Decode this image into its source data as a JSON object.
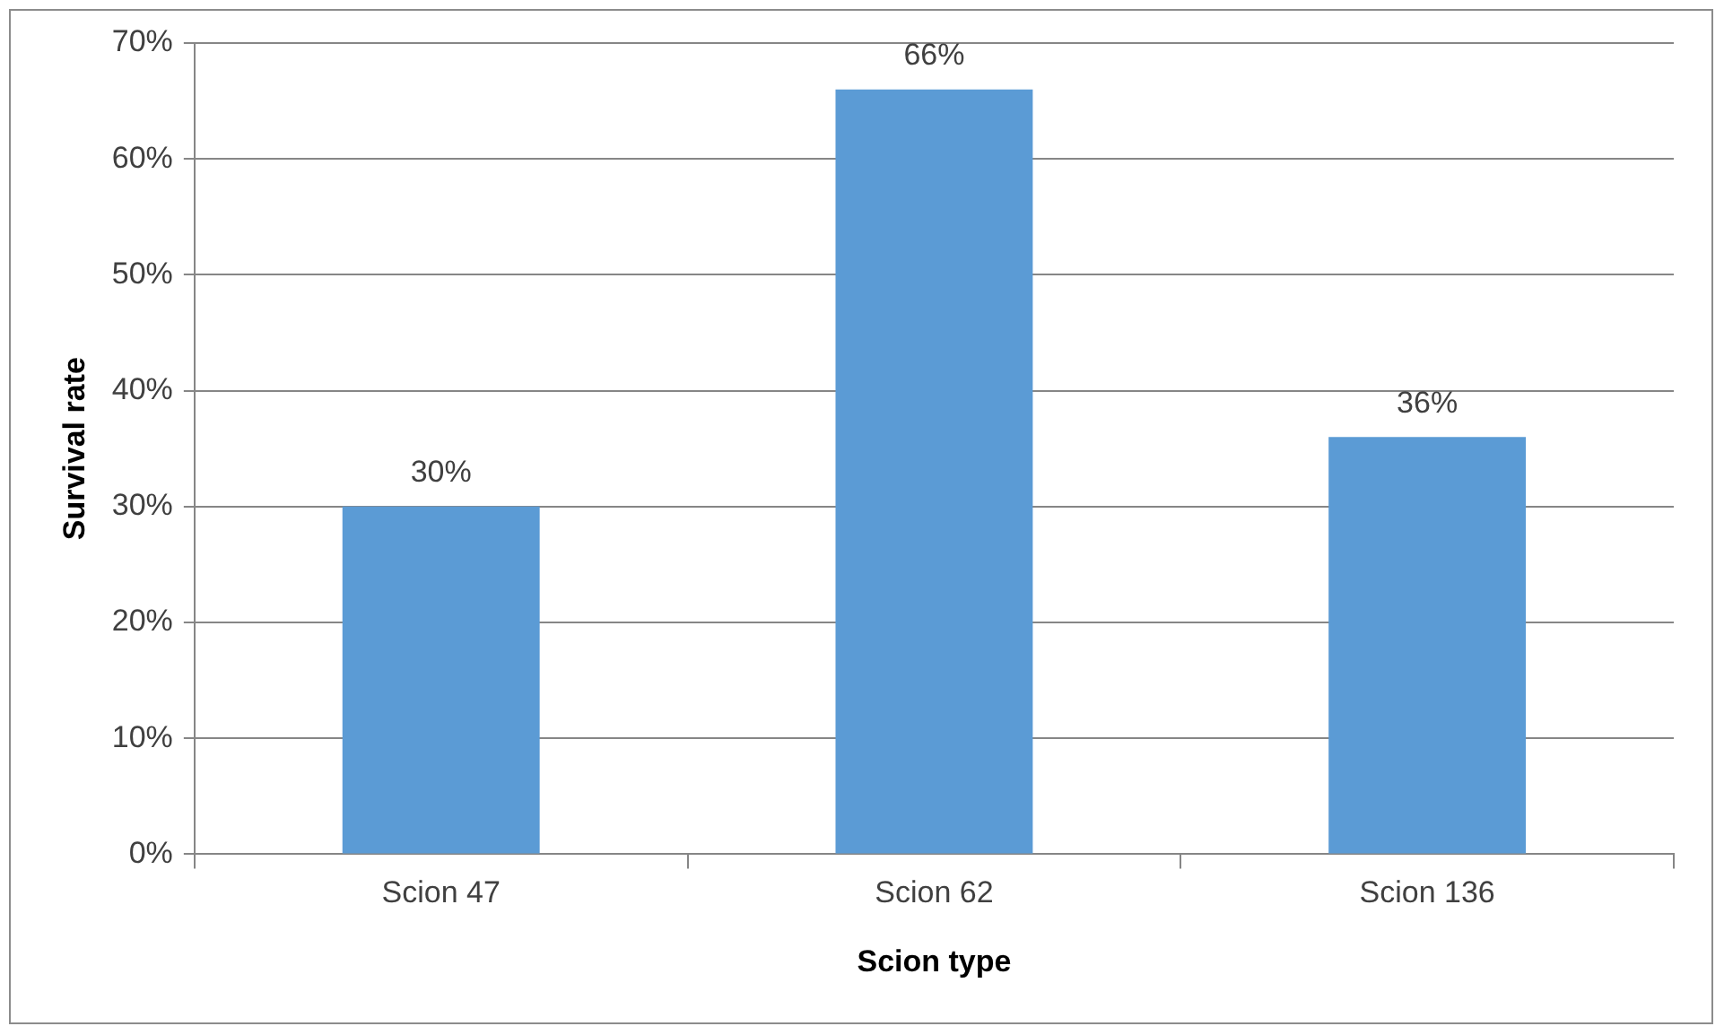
{
  "chart_data": {
    "type": "bar",
    "xlabel": "Scion type",
    "ylabel": "Survival rate",
    "categories": [
      "Scion 47",
      "Scion 62",
      "Scion 136"
    ],
    "values": [
      30,
      66,
      36
    ],
    "value_labels": [
      "30%",
      "66%",
      "36%"
    ],
    "color": "#5b9bd5",
    "ylim": [
      0,
      70
    ],
    "yticks": [
      {
        "value": 0,
        "label": "0%"
      },
      {
        "value": 10,
        "label": "10%"
      },
      {
        "value": 20,
        "label": "20%"
      },
      {
        "value": 30,
        "label": "30%"
      },
      {
        "value": 40,
        "label": "40%"
      },
      {
        "value": 50,
        "label": "50%"
      },
      {
        "value": 60,
        "label": "60%"
      },
      {
        "value": 70,
        "label": "70%"
      }
    ],
    "grid": "y",
    "legend": false
  }
}
